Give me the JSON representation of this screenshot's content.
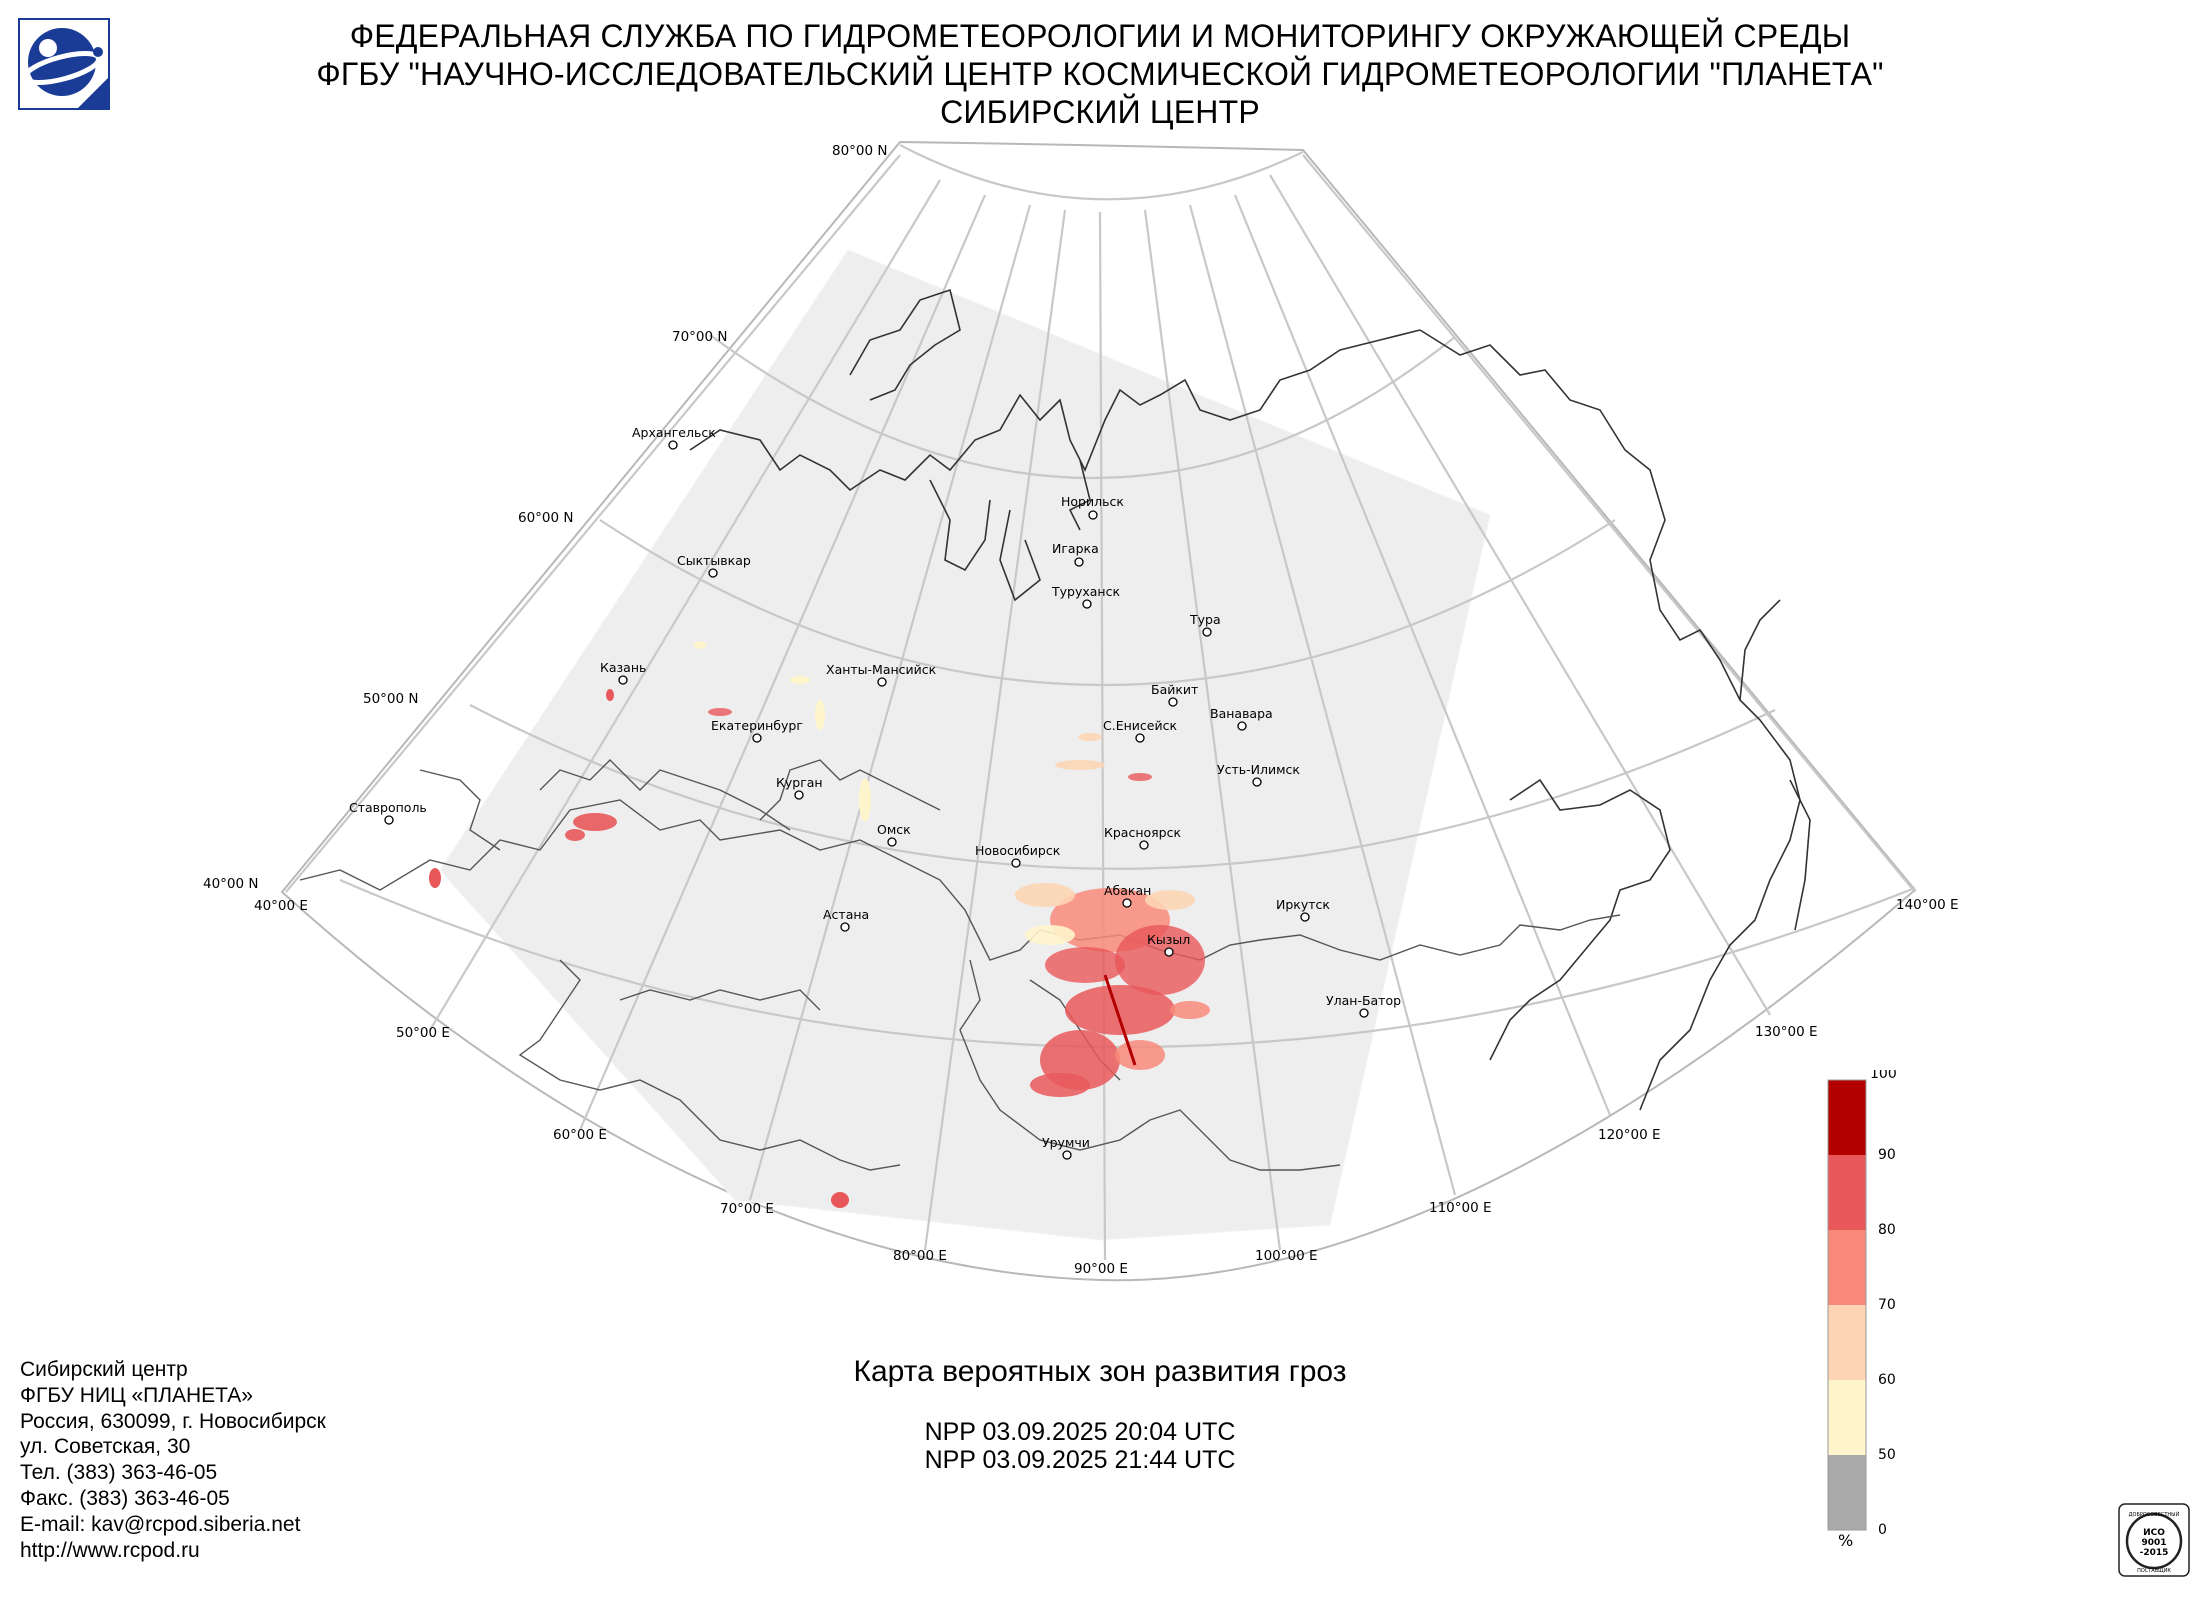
{
  "header": {
    "line1": "ФЕДЕРАЛЬНАЯ СЛУЖБА ПО ГИДРОМЕТЕОРОЛОГИИ И МОНИТОРИНГУ ОКРУЖАЮЩЕЙ СРЕДЫ",
    "line2": "ФГБУ \"НАУЧНО-ИССЛЕДОВАТЕЛЬСКИЙ ЦЕНТР КОСМИЧЕСКОЙ ГИДРОМЕТЕОРОЛОГИИ \"ПЛАНЕТА\"",
    "line3": "СИБИРСКИЙ ЦЕНТР"
  },
  "grid": {
    "lat_labels": [
      "80°00 N",
      "70°00 N",
      "60°00 N",
      "50°00 N",
      "40°00 N"
    ],
    "lon_labels": [
      "40°00 E",
      "50°00 E",
      "60°00 E",
      "70°00 E",
      "80°00 E",
      "90°00 E",
      "100°00 E",
      "110°00 E",
      "120°00 E",
      "130°00 E",
      "140°00 E"
    ]
  },
  "cities": [
    {
      "name": "Архангельск"
    },
    {
      "name": "Сыктывкар"
    },
    {
      "name": "Казань"
    },
    {
      "name": "Ханты-Мансийск"
    },
    {
      "name": "Екатеринбург"
    },
    {
      "name": "Курган"
    },
    {
      "name": "Ставрополь"
    },
    {
      "name": "Омск"
    },
    {
      "name": "Новосибирск"
    },
    {
      "name": "Астана"
    },
    {
      "name": "Норильск"
    },
    {
      "name": "Игарка"
    },
    {
      "name": "Туруханск"
    },
    {
      "name": "Тура"
    },
    {
      "name": "Байкит"
    },
    {
      "name": "Ванавара"
    },
    {
      "name": "С.Енисейск"
    },
    {
      "name": "Усть-Илимск"
    },
    {
      "name": "Красноярск"
    },
    {
      "name": "Абакан"
    },
    {
      "name": "Кызыл"
    },
    {
      "name": "Иркутск"
    },
    {
      "name": "Улан-Батор"
    },
    {
      "name": "Урумчи"
    }
  ],
  "footer": {
    "address_lines": [
      "Сибирский центр",
      "ФГБУ НИЦ «ПЛАНЕТА»",
      "Россия, 630099, г. Новосибирск",
      "ул. Советская, 30",
      "Тел. (383) 363-46-05",
      "Факс. (383) 363-46-05",
      "E-mail: kav@rcpod.siberia.net",
      "http://www.rcpod.ru"
    ],
    "map_title": "Карта вероятных зон развития гроз",
    "passes": [
      "NPP 03.09.2025  20:04 UTC",
      "NPP 03.09.2025  21:44 UTC"
    ]
  },
  "legend": {
    "ticks": [
      "100",
      "90",
      "80",
      "70",
      "60",
      "50",
      "0"
    ],
    "unit": "%",
    "colors": [
      "#b30000",
      "#e8585a",
      "#f8897a",
      "#fdd5b4",
      "#fff5cc",
      "#aaaaaa"
    ]
  },
  "iso_badge": {
    "top_text": "ДОБРОСОВЕСТНЫЙ",
    "main": [
      "ИСО",
      "9001",
      "-2015"
    ],
    "bottom_text": "ПОСТАВЩИК"
  }
}
